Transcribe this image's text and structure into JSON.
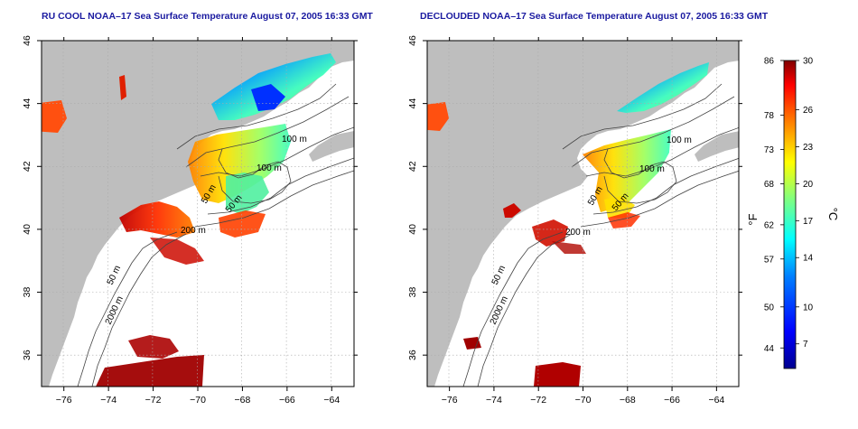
{
  "titles": {
    "left": "RU COOL NOAA–17 Sea Surface Temperature August 07, 2005 16:33 GMT",
    "right": "DECLOUDED NOAA–17 Sea Surface Temperature August 07, 2005 16:33 GMT"
  },
  "map_axes": {
    "lon_ticks": [
      -76,
      -74,
      -72,
      -70,
      -68,
      -66,
      -64
    ],
    "lat_ticks": [
      46,
      44,
      42,
      40,
      38,
      36
    ],
    "lon_range": [
      -77,
      -63
    ],
    "lat_range": [
      35,
      46
    ],
    "grid": "dotted"
  },
  "contour_labels": {
    "left": [
      "100 m",
      "100 m",
      "50 m",
      "50 m",
      "200 m",
      "50 m",
      "2000 m"
    ],
    "right": [
      "100 m",
      "100 m",
      "50 m",
      "50 m",
      "200 m",
      "50 m",
      "2000 m"
    ]
  },
  "colorbar": {
    "units_left": "°F",
    "units_right": "°C",
    "celsius_range": [
      5,
      30
    ],
    "fahrenheit_ticks": [
      "86",
      "78",
      "73",
      "68",
      "62",
      "57",
      "50",
      "44"
    ],
    "celsius_ticks": [
      "30",
      "26",
      "23",
      "20",
      "17",
      "14",
      "10",
      "7"
    ],
    "colors": [
      "#00008f",
      "#0000ff",
      "#0080ff",
      "#00ffff",
      "#80ff80",
      "#ffff00",
      "#ff8000",
      "#ff0000",
      "#800000"
    ]
  },
  "colors": {
    "land": "#bebebe",
    "ocean": "#ffffff",
    "no_data": "#ffffff",
    "title": "#1a1aa0"
  }
}
